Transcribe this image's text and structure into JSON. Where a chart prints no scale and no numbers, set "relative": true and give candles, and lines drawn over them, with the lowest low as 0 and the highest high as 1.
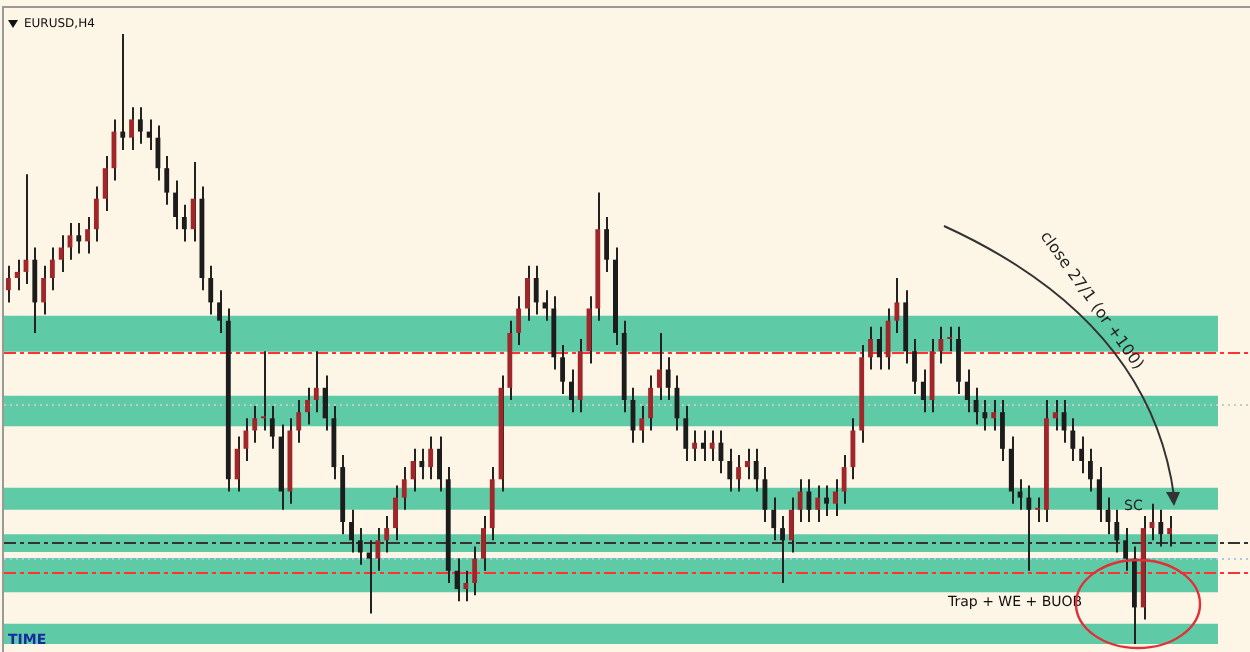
{
  "chart_data": {
    "type": "candlestick",
    "title": "EURUSD,H4",
    "relative": true,
    "tick_labels": false,
    "categories": [
      null,
      null,
      null,
      null,
      null,
      null,
      null,
      null,
      null,
      null,
      null,
      null,
      null,
      null,
      null,
      null,
      null,
      null,
      null,
      null,
      null,
      null,
      null,
      null,
      null,
      null,
      null,
      null,
      null,
      null,
      null,
      null,
      null,
      null,
      null,
      null,
      null,
      null,
      null,
      null,
      null,
      null,
      null,
      null,
      null,
      null,
      null,
      null,
      null,
      null,
      null,
      null,
      null,
      null,
      null,
      null,
      null,
      null,
      null,
      null,
      null,
      null,
      null,
      null,
      null,
      null,
      null,
      null,
      null,
      null,
      null,
      null,
      null,
      null,
      null,
      null,
      null,
      null,
      null,
      null,
      null,
      null,
      null,
      null,
      null,
      null,
      null,
      null,
      null,
      null,
      null,
      null,
      null,
      null,
      null,
      null,
      null,
      null,
      null,
      null,
      null,
      null,
      null,
      null,
      null,
      null,
      null,
      null,
      null,
      null,
      null,
      null,
      null,
      null,
      null,
      null,
      null,
      null,
      null,
      null,
      null,
      null,
      null,
      null,
      null,
      null,
      null,
      null,
      null,
      null,
      null,
      null,
      null
    ],
    "ohlc": [
      [
        0.58,
        0.62,
        0.56,
        0.6
      ],
      [
        0.6,
        0.63,
        0.58,
        0.61
      ],
      [
        0.61,
        0.77,
        0.59,
        0.63
      ],
      [
        0.63,
        0.65,
        0.51,
        0.56
      ],
      [
        0.56,
        0.62,
        0.54,
        0.6
      ],
      [
        0.6,
        0.65,
        0.58,
        0.63
      ],
      [
        0.63,
        0.67,
        0.61,
        0.65
      ],
      [
        0.65,
        0.69,
        0.63,
        0.67
      ],
      [
        0.67,
        0.69,
        0.64,
        0.66
      ],
      [
        0.66,
        0.7,
        0.64,
        0.68
      ],
      [
        0.68,
        0.75,
        0.66,
        0.73
      ],
      [
        0.73,
        0.8,
        0.71,
        0.78
      ],
      [
        0.78,
        0.86,
        0.76,
        0.84
      ],
      [
        0.84,
        1.0,
        0.81,
        0.83
      ],
      [
        0.83,
        0.88,
        0.81,
        0.86
      ],
      [
        0.86,
        0.88,
        0.82,
        0.84
      ],
      [
        0.84,
        0.86,
        0.81,
        0.83
      ],
      [
        0.83,
        0.85,
        0.76,
        0.78
      ],
      [
        0.78,
        0.8,
        0.72,
        0.74
      ],
      [
        0.74,
        0.76,
        0.68,
        0.7
      ],
      [
        0.7,
        0.72,
        0.66,
        0.68
      ],
      [
        0.68,
        0.79,
        0.66,
        0.73
      ],
      [
        0.73,
        0.75,
        0.58,
        0.6
      ],
      [
        0.6,
        0.62,
        0.54,
        0.56
      ],
      [
        0.56,
        0.58,
        0.51,
        0.53
      ],
      [
        0.53,
        0.55,
        0.25,
        0.27
      ],
      [
        0.27,
        0.34,
        0.25,
        0.32
      ],
      [
        0.32,
        0.37,
        0.3,
        0.35
      ],
      [
        0.35,
        0.39,
        0.33,
        0.37
      ],
      [
        0.37,
        0.48,
        0.35,
        0.37
      ],
      [
        0.37,
        0.39,
        0.32,
        0.34
      ],
      [
        0.34,
        0.36,
        0.22,
        0.25
      ],
      [
        0.25,
        0.37,
        0.23,
        0.35
      ],
      [
        0.35,
        0.4,
        0.33,
        0.38
      ],
      [
        0.38,
        0.42,
        0.36,
        0.4
      ],
      [
        0.4,
        0.48,
        0.38,
        0.42
      ],
      [
        0.42,
        0.44,
        0.35,
        0.37
      ],
      [
        0.37,
        0.39,
        0.27,
        0.29
      ],
      [
        0.29,
        0.31,
        0.18,
        0.2
      ],
      [
        0.2,
        0.22,
        0.15,
        0.17
      ],
      [
        0.17,
        0.19,
        0.13,
        0.15
      ],
      [
        0.15,
        0.17,
        0.05,
        0.14
      ],
      [
        0.14,
        0.19,
        0.12,
        0.17
      ],
      [
        0.17,
        0.21,
        0.15,
        0.19
      ],
      [
        0.19,
        0.26,
        0.17,
        0.24
      ],
      [
        0.24,
        0.29,
        0.22,
        0.27
      ],
      [
        0.27,
        0.32,
        0.25,
        0.3
      ],
      [
        0.3,
        0.32,
        0.27,
        0.29
      ],
      [
        0.29,
        0.34,
        0.27,
        0.32
      ],
      [
        0.32,
        0.34,
        0.25,
        0.27
      ],
      [
        0.27,
        0.29,
        0.1,
        0.12
      ],
      [
        0.12,
        0.14,
        0.07,
        0.09
      ],
      [
        0.09,
        0.12,
        0.07,
        0.1
      ],
      [
        0.1,
        0.16,
        0.08,
        0.14
      ],
      [
        0.14,
        0.21,
        0.12,
        0.19
      ],
      [
        0.19,
        0.29,
        0.17,
        0.27
      ],
      [
        0.27,
        0.44,
        0.25,
        0.42
      ],
      [
        0.42,
        0.53,
        0.4,
        0.51
      ],
      [
        0.51,
        0.57,
        0.49,
        0.55
      ],
      [
        0.55,
        0.62,
        0.53,
        0.6
      ],
      [
        0.6,
        0.62,
        0.54,
        0.56
      ],
      [
        0.56,
        0.58,
        0.53,
        0.55
      ],
      [
        0.55,
        0.57,
        0.45,
        0.47
      ],
      [
        0.47,
        0.49,
        0.41,
        0.43
      ],
      [
        0.43,
        0.45,
        0.38,
        0.4
      ],
      [
        0.4,
        0.5,
        0.38,
        0.48
      ],
      [
        0.48,
        0.57,
        0.46,
        0.55
      ],
      [
        0.55,
        0.74,
        0.53,
        0.68
      ],
      [
        0.68,
        0.7,
        0.61,
        0.63
      ],
      [
        0.63,
        0.65,
        0.49,
        0.51
      ],
      [
        0.51,
        0.53,
        0.38,
        0.4
      ],
      [
        0.4,
        0.42,
        0.33,
        0.35
      ],
      [
        0.35,
        0.39,
        0.33,
        0.37
      ],
      [
        0.37,
        0.44,
        0.35,
        0.42
      ],
      [
        0.42,
        0.51,
        0.4,
        0.45
      ],
      [
        0.45,
        0.47,
        0.4,
        0.42
      ],
      [
        0.42,
        0.44,
        0.35,
        0.37
      ],
      [
        0.37,
        0.39,
        0.3,
        0.32
      ],
      [
        0.32,
        0.35,
        0.3,
        0.33
      ],
      [
        0.33,
        0.35,
        0.3,
        0.32
      ],
      [
        0.32,
        0.35,
        0.3,
        0.33
      ],
      [
        0.33,
        0.35,
        0.28,
        0.3
      ],
      [
        0.3,
        0.32,
        0.25,
        0.27
      ],
      [
        0.27,
        0.31,
        0.25,
        0.29
      ],
      [
        0.29,
        0.32,
        0.27,
        0.3
      ],
      [
        0.3,
        0.32,
        0.25,
        0.27
      ],
      [
        0.27,
        0.29,
        0.2,
        0.22
      ],
      [
        0.22,
        0.24,
        0.17,
        0.19
      ],
      [
        0.19,
        0.21,
        0.1,
        0.17
      ],
      [
        0.17,
        0.24,
        0.15,
        0.22
      ],
      [
        0.22,
        0.27,
        0.2,
        0.25
      ],
      [
        0.25,
        0.27,
        0.2,
        0.22
      ],
      [
        0.22,
        0.26,
        0.2,
        0.24
      ],
      [
        0.24,
        0.26,
        0.21,
        0.23
      ],
      [
        0.23,
        0.27,
        0.21,
        0.25
      ],
      [
        0.25,
        0.31,
        0.23,
        0.29
      ],
      [
        0.29,
        0.37,
        0.27,
        0.35
      ],
      [
        0.35,
        0.49,
        0.33,
        0.47
      ],
      [
        0.47,
        0.52,
        0.45,
        0.5
      ],
      [
        0.5,
        0.52,
        0.45,
        0.47
      ],
      [
        0.47,
        0.55,
        0.45,
        0.53
      ],
      [
        0.53,
        0.6,
        0.51,
        0.56
      ],
      [
        0.56,
        0.58,
        0.46,
        0.48
      ],
      [
        0.48,
        0.5,
        0.41,
        0.43
      ],
      [
        0.43,
        0.45,
        0.38,
        0.4
      ],
      [
        0.4,
        0.5,
        0.38,
        0.48
      ],
      [
        0.48,
        0.52,
        0.46,
        0.5
      ],
      [
        0.5,
        0.52,
        0.48,
        0.5
      ],
      [
        0.5,
        0.52,
        0.41,
        0.43
      ],
      [
        0.43,
        0.45,
        0.38,
        0.4
      ],
      [
        0.4,
        0.42,
        0.36,
        0.38
      ],
      [
        0.38,
        0.4,
        0.35,
        0.37
      ],
      [
        0.37,
        0.4,
        0.35,
        0.38
      ],
      [
        0.38,
        0.4,
        0.3,
        0.32
      ],
      [
        0.32,
        0.34,
        0.23,
        0.25
      ],
      [
        0.25,
        0.27,
        0.22,
        0.24
      ],
      [
        0.24,
        0.26,
        0.12,
        0.22
      ],
      [
        0.22,
        0.24,
        0.2,
        0.22
      ],
      [
        0.22,
        0.4,
        0.2,
        0.37
      ],
      [
        0.37,
        0.4,
        0.35,
        0.38
      ],
      [
        0.38,
        0.4,
        0.33,
        0.35
      ],
      [
        0.35,
        0.37,
        0.3,
        0.32
      ],
      [
        0.32,
        0.34,
        0.28,
        0.3
      ],
      [
        0.3,
        0.32,
        0.25,
        0.27
      ],
      [
        0.27,
        0.29,
        0.2,
        0.22
      ],
      [
        0.22,
        0.24,
        0.18,
        0.2
      ],
      [
        0.2,
        0.22,
        0.15,
        0.17
      ],
      [
        0.17,
        0.19,
        0.12,
        0.14
      ],
      [
        0.14,
        0.16,
        0.0,
        0.06
      ],
      [
        0.06,
        0.21,
        0.04,
        0.19
      ],
      [
        0.19,
        0.23,
        0.17,
        0.2
      ],
      [
        0.2,
        0.22,
        0.16,
        0.18
      ],
      [
        0.18,
        0.21,
        0.16,
        0.19
      ]
    ],
    "bands": [
      {
        "axis": "y",
        "from": 0.0,
        "to": 0.033,
        "color": "#5fcba6"
      },
      {
        "axis": "y",
        "from": 0.085,
        "to": 0.141,
        "color": "#5fcba6"
      },
      {
        "axis": "y",
        "from": 0.151,
        "to": 0.18,
        "color": "#5fcba6"
      },
      {
        "axis": "y",
        "from": 0.22,
        "to": 0.256,
        "color": "#5fcba6"
      },
      {
        "axis": "y",
        "from": 0.357,
        "to": 0.407,
        "color": "#5fcba6"
      },
      {
        "axis": "y",
        "from": 0.479,
        "to": 0.538,
        "color": "#5fcba6"
      }
    ],
    "ref_lines": [
      {
        "axis": "y",
        "value": 0.479,
        "color": "#ff3333",
        "line_style": "dashed"
      },
      {
        "axis": "y",
        "value": 0.118,
        "color": "#ff3333",
        "line_style": "dashed"
      },
      {
        "axis": "y",
        "value": 0.167,
        "color": "#333333",
        "line_style": "dashed"
      },
      {
        "axis": "y",
        "value": 0.393,
        "color": "#c8c8c8",
        "line_style": "dotted"
      },
      {
        "axis": "y",
        "value": 0.141,
        "color": "#a8c8e8",
        "line_style": "dotted"
      }
    ],
    "annotations": [
      "close 27/1 (or +100)",
      "SC",
      "Trap + WE + BUOB",
      "TIME"
    ]
  }
}
